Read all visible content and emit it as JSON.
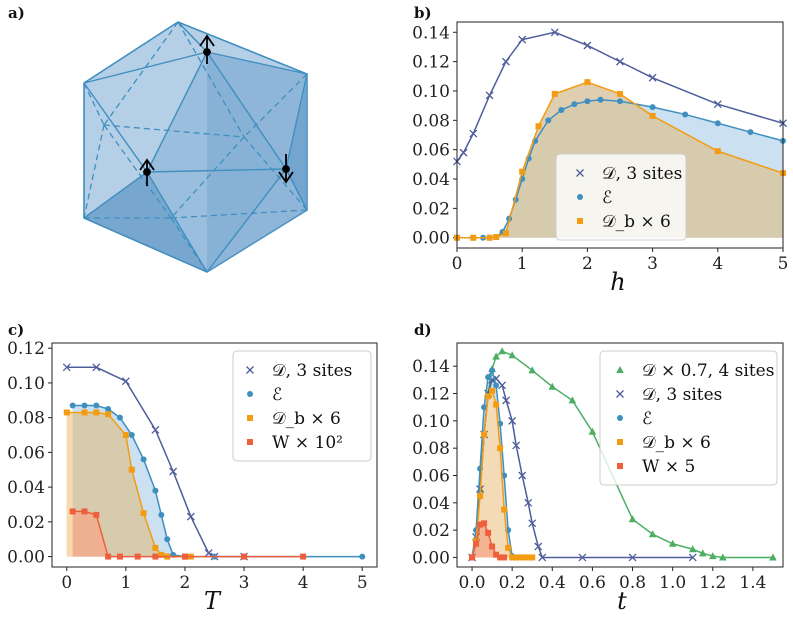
{
  "colors": {
    "D": "#4e5d9b",
    "E": "#3f8fc0",
    "Db": "#f39c12",
    "W": "#ee5f3c",
    "D4": "#4cae63",
    "fillE": "#c2dcee",
    "fillDb": "#d9c7a2",
    "fillDbLight": "#fbd9ae",
    "fillW": "#f3ab8c"
  },
  "panels": {
    "a": {
      "label": "a)"
    },
    "b": {
      "label": "b)",
      "xlabel": "h"
    },
    "c": {
      "label": "c)",
      "xlabel": "T"
    },
    "d": {
      "label": "d)",
      "xlabel": "t"
    }
  },
  "chart_data": [
    {
      "panel": "b",
      "type": "line",
      "xlabel": "h",
      "ylabel": "",
      "xlim": [
        0,
        5
      ],
      "ylim": [
        -0.007,
        0.147
      ],
      "xticks": [
        "0",
        "1",
        "2",
        "3",
        "4",
        "5"
      ],
      "yticks": [
        "0.00",
        "0.02",
        "0.04",
        "0.06",
        "0.08",
        "0.10",
        "0.12",
        "0.14"
      ],
      "legend_position": "lower-right",
      "series": [
        {
          "key": "D",
          "name": "𝒟,  3 sites",
          "marker": "x",
          "x": [
            0,
            0.1,
            0.25,
            0.5,
            0.75,
            1,
            1.5,
            2,
            2.5,
            3,
            4,
            5
          ],
          "y": [
            0.052,
            0.058,
            0.071,
            0.097,
            0.12,
            0.135,
            0.14,
            0.131,
            0.12,
            0.109,
            0.091,
            0.078
          ]
        },
        {
          "key": "E",
          "name": "ℰ",
          "marker": "circle",
          "x": [
            0,
            0.25,
            0.4,
            0.5,
            0.6,
            0.7,
            0.8,
            0.9,
            1.0,
            1.1,
            1.2,
            1.4,
            1.6,
            1.8,
            2.0,
            2.2,
            2.5,
            3,
            3.5,
            4,
            4.5,
            5
          ],
          "y": [
            0,
            0,
            0,
            0,
            0.0005,
            0.004,
            0.013,
            0.026,
            0.04,
            0.054,
            0.066,
            0.08,
            0.087,
            0.091,
            0.093,
            0.094,
            0.093,
            0.089,
            0.084,
            0.078,
            0.072,
            0.066
          ]
        },
        {
          "key": "Db",
          "name": "𝒟_b × 6",
          "marker": "square",
          "x": [
            0,
            0.25,
            0.5,
            0.6,
            0.75,
            1.0,
            1.25,
            1.5,
            2.0,
            2.5,
            3.0,
            4.0,
            5.0
          ],
          "y": [
            0,
            0,
            0,
            0.0005,
            0.003,
            0.045,
            0.076,
            0.098,
            0.106,
            0.098,
            0.083,
            0.059,
            0.044
          ]
        }
      ]
    },
    {
      "panel": "c",
      "type": "line",
      "xlabel": "T",
      "ylabel": "",
      "xlim": [
        -0.25,
        5.25
      ],
      "ylim": [
        -0.006,
        0.123
      ],
      "xticks": [
        "0",
        "1",
        "2",
        "3",
        "4",
        "5"
      ],
      "yticks": [
        "0.00",
        "0.02",
        "0.04",
        "0.06",
        "0.08",
        "0.10",
        "0.12"
      ],
      "legend_position": "top-right",
      "series": [
        {
          "key": "D",
          "name": "𝒟,  3 sites",
          "marker": "x",
          "x": [
            0,
            0.5,
            1,
            1.5,
            1.8,
            2.1,
            2.4,
            2.5,
            3.0
          ],
          "y": [
            0.109,
            0.109,
            0.101,
            0.073,
            0.049,
            0.023,
            0.002,
            0,
            0
          ]
        },
        {
          "key": "E",
          "name": "ℰ",
          "marker": "circle",
          "x": [
            0.1,
            0.3,
            0.5,
            0.7,
            0.9,
            1.1,
            1.3,
            1.5,
            1.6,
            1.7,
            1.8,
            2.0,
            2.5,
            3.0,
            5.0
          ],
          "y": [
            0.087,
            0.087,
            0.087,
            0.085,
            0.08,
            0.07,
            0.056,
            0.038,
            0.024,
            0.01,
            0.001,
            0,
            0,
            0,
            0
          ]
        },
        {
          "key": "Db",
          "name": "𝒟_b × 6",
          "marker": "square",
          "x": [
            0,
            0.3,
            0.5,
            0.7,
            1.0,
            1.1,
            1.3,
            1.5,
            1.6,
            1.7,
            2.0,
            2.1
          ],
          "y": [
            0.083,
            0.083,
            0.083,
            0.082,
            0.07,
            0.05,
            0.025,
            0.005,
            0.001,
            0,
            0,
            0
          ]
        },
        {
          "key": "W",
          "name": "W × 10²",
          "marker": "square",
          "x": [
            0.1,
            0.3,
            0.5,
            0.7,
            0.9,
            1.2,
            1.5,
            2.0,
            3.0,
            4.0
          ],
          "y": [
            0.026,
            0.026,
            0.024,
            0,
            0,
            0,
            0,
            0,
            0,
            0
          ]
        }
      ]
    },
    {
      "panel": "d",
      "type": "line",
      "xlabel": "t",
      "ylabel": "",
      "xlim": [
        -0.075,
        1.55
      ],
      "ylim": [
        -0.007,
        0.157
      ],
      "xticks": [
        "0.0",
        "0.2",
        "0.4",
        "0.6",
        "0.8",
        "1.0",
        "1.2",
        "1.4"
      ],
      "yticks": [
        "0.00",
        "0.02",
        "0.04",
        "0.06",
        "0.08",
        "0.10",
        "0.12",
        "0.14"
      ],
      "legend_position": "top-right",
      "series": [
        {
          "key": "D4",
          "name": "𝒟 × 0.7,  4 sites",
          "marker": "triangle",
          "x": [
            0.0,
            0.02,
            0.04,
            0.06,
            0.08,
            0.1,
            0.12,
            0.15,
            0.2,
            0.3,
            0.4,
            0.5,
            0.6,
            0.8,
            0.9,
            1.0,
            1.1,
            1.15,
            1.2,
            1.25,
            1.5
          ],
          "y": [
            0,
            0.015,
            0.05,
            0.09,
            0.12,
            0.138,
            0.147,
            0.151,
            0.148,
            0.137,
            0.125,
            0.115,
            0.092,
            0.028,
            0.017,
            0.01,
            0.006,
            0.003,
            0.001,
            0,
            0
          ]
        },
        {
          "key": "D",
          "name": "𝒟,  3 sites",
          "marker": "x",
          "x": [
            0.0,
            0.02,
            0.04,
            0.06,
            0.08,
            0.1,
            0.12,
            0.15,
            0.17,
            0.2,
            0.22,
            0.25,
            0.28,
            0.3,
            0.33,
            0.35,
            0.55,
            0.8,
            1.1
          ],
          "y": [
            0,
            0.015,
            0.05,
            0.09,
            0.12,
            0.13,
            0.131,
            0.126,
            0.115,
            0.1,
            0.082,
            0.06,
            0.04,
            0.025,
            0.008,
            0,
            0,
            0,
            0
          ]
        },
        {
          "key": "E",
          "name": "ℰ",
          "marker": "circle",
          "x": [
            0.0,
            0.02,
            0.04,
            0.06,
            0.08,
            0.1,
            0.12,
            0.14,
            0.16,
            0.18,
            0.2,
            0.22
          ],
          "y": [
            0,
            0.02,
            0.065,
            0.11,
            0.132,
            0.137,
            0.126,
            0.098,
            0.06,
            0.02,
            0.001,
            0
          ]
        },
        {
          "key": "Db",
          "name": "𝒟_b × 6",
          "marker": "square",
          "x": [
            0.0,
            0.02,
            0.04,
            0.06,
            0.08,
            0.1,
            0.12,
            0.14,
            0.16,
            0.18,
            0.2,
            0.22,
            0.24,
            0.26,
            0.28,
            0.3
          ],
          "y": [
            0,
            0.012,
            0.045,
            0.09,
            0.118,
            0.122,
            0.112,
            0.08,
            0.035,
            0.007,
            0,
            0,
            0,
            0,
            0,
            0
          ]
        },
        {
          "key": "W",
          "name": "W × 5",
          "marker": "square",
          "x": [
            0.0,
            0.02,
            0.04,
            0.06,
            0.08,
            0.1,
            0.12,
            0.14,
            0.16
          ],
          "y": [
            0,
            0.01,
            0.024,
            0.025,
            0.018,
            0.008,
            0.002,
            0,
            0
          ]
        }
      ]
    }
  ]
}
